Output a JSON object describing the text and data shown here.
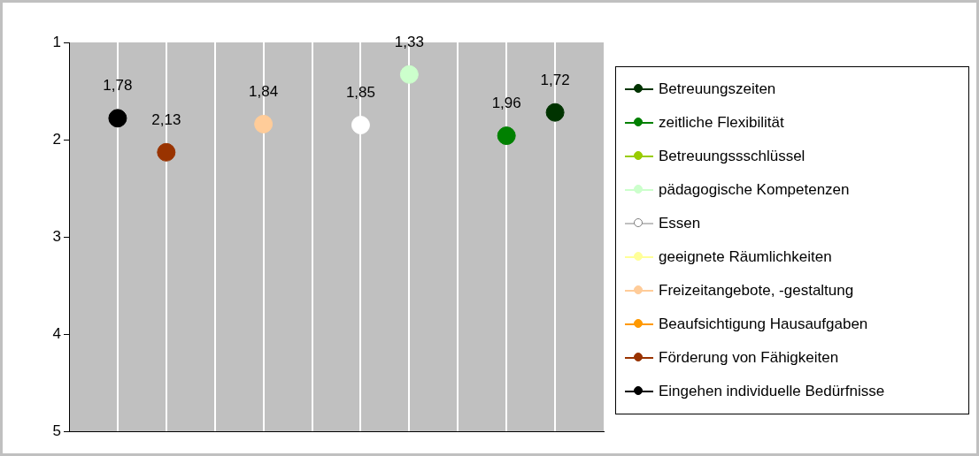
{
  "chart_data": {
    "type": "scatter",
    "marker": "circle",
    "grid": "x",
    "legend": "right",
    "tick_labels": "y",
    "categories": [
      null,
      null,
      null,
      null,
      null,
      null,
      null,
      null,
      null,
      null
    ],
    "ylim": [
      5,
      1
    ],
    "yticks": [
      1,
      2,
      3,
      4,
      5
    ],
    "series": [
      {
        "name": "Betreuungszeiten",
        "color": "#003300",
        "values": [
          null,
          null,
          null,
          null,
          null,
          null,
          null,
          null,
          null,
          1.72
        ],
        "value_labels": [
          null,
          null,
          null,
          null,
          null,
          null,
          null,
          null,
          null,
          "1,72"
        ]
      },
      {
        "name": "zeitliche Flexibilität",
        "color": "#008000",
        "values": [
          null,
          null,
          null,
          null,
          null,
          null,
          null,
          null,
          1.96,
          null
        ],
        "value_labels": [
          null,
          null,
          null,
          null,
          null,
          null,
          null,
          null,
          "1,96",
          null
        ]
      },
      {
        "name": "Betreuungssschlüssel",
        "color": "#99cc00",
        "values": [
          null,
          null,
          null,
          null,
          null,
          null,
          null,
          null,
          null,
          null
        ]
      },
      {
        "name": "pädagogische Kompetenzen",
        "color": "#ccffcc",
        "values": [
          null,
          null,
          null,
          null,
          null,
          null,
          1.33,
          null,
          null,
          null
        ],
        "value_labels": [
          null,
          null,
          null,
          null,
          null,
          null,
          "1,33",
          null,
          null,
          null
        ]
      },
      {
        "name": "Essen",
        "color": "#ffffff",
        "values": [
          null,
          null,
          null,
          null,
          null,
          1.85,
          null,
          null,
          null,
          null
        ],
        "value_labels": [
          null,
          null,
          null,
          null,
          null,
          "1,85",
          null,
          null,
          null,
          null
        ]
      },
      {
        "name": "geeignete Räumlichkeiten",
        "color": "#ffff99",
        "values": [
          null,
          null,
          null,
          null,
          null,
          null,
          null,
          null,
          null,
          null
        ]
      },
      {
        "name": "Freizeitangebote, -gestaltung",
        "color": "#ffcc99",
        "values": [
          null,
          null,
          null,
          1.84,
          null,
          null,
          null,
          null,
          null,
          null
        ],
        "value_labels": [
          null,
          null,
          null,
          "1,84",
          null,
          null,
          null,
          null,
          null,
          null
        ]
      },
      {
        "name": "Beaufsichtigung Hausaufgaben",
        "color": "#ff9900",
        "values": [
          null,
          null,
          null,
          null,
          null,
          null,
          null,
          null,
          null,
          null
        ]
      },
      {
        "name": "Förderung von Fähigkeiten",
        "color": "#993300",
        "values": [
          null,
          2.13,
          null,
          null,
          null,
          null,
          null,
          null,
          null,
          null
        ],
        "value_labels": [
          null,
          "2,13",
          null,
          null,
          null,
          null,
          null,
          null,
          null,
          null
        ]
      },
      {
        "name": "Eingehen individuelle Bedürfnisse",
        "color": "#000000",
        "values": [
          1.78,
          null,
          null,
          null,
          null,
          null,
          null,
          null,
          null,
          null
        ],
        "value_labels": [
          "1,78",
          null,
          null,
          null,
          null,
          null,
          null,
          null,
          null,
          null
        ]
      }
    ]
  }
}
